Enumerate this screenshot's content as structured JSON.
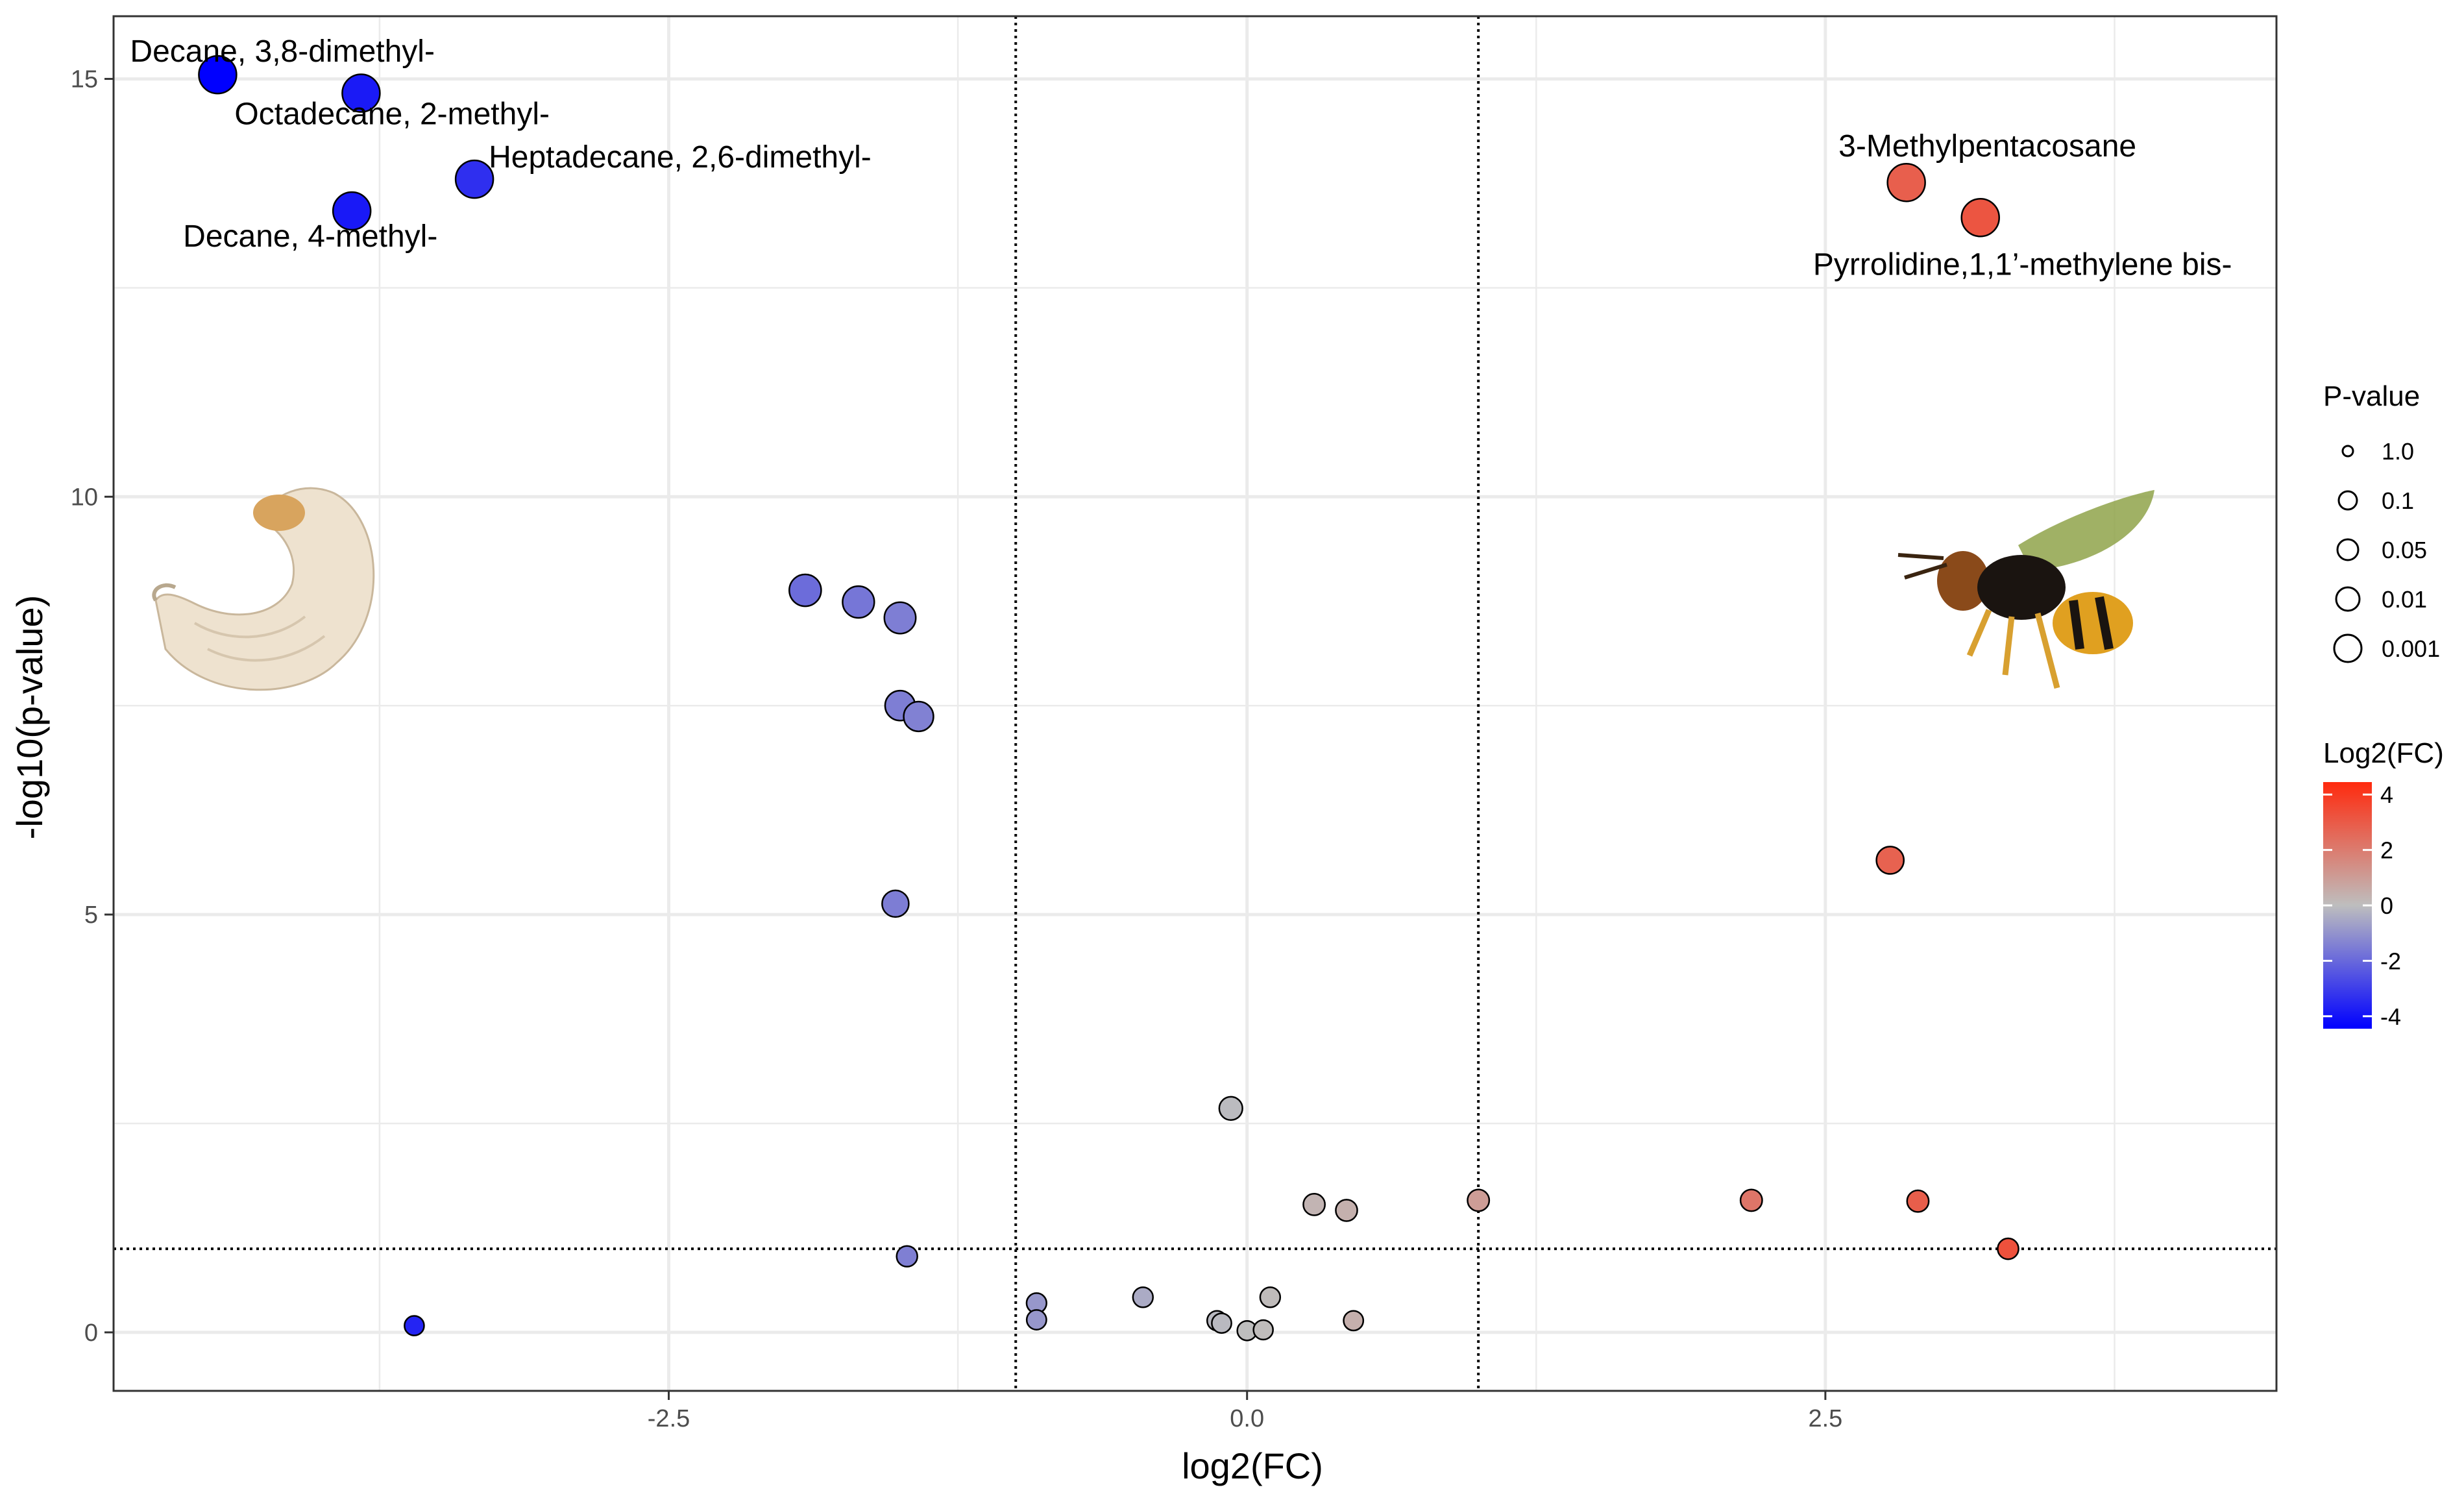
{
  "chart_data": {
    "type": "scatter",
    "title": "",
    "xlabel": "log2(FC)",
    "ylabel": "-log10(p-value)",
    "xlim": [
      -4.9,
      4.45
    ],
    "ylim": [
      -0.7,
      15.75
    ],
    "x_ticks": [
      -2.5,
      0.0,
      2.5
    ],
    "x_tick_labels": [
      "-2.5",
      "0.0",
      "2.5"
    ],
    "y_ticks": [
      0,
      5,
      10,
      15
    ],
    "y_tick_labels": [
      "0",
      "5",
      "10",
      "15"
    ],
    "grid": true,
    "thresholds": {
      "x": [
        -1,
        1
      ],
      "y": 1
    },
    "colors": {
      "low": "#0000ff",
      "mid": "#bebebe",
      "high": "#ff2a0e",
      "grid": "#ebebeb",
      "panel_border": "#333333"
    },
    "points": [
      {
        "x": -4.45,
        "y": 15.05,
        "label": "Decane, 3,8-dimethyl-"
      },
      {
        "x": -3.83,
        "y": 14.83,
        "label": "Octadecane, 2-methyl-"
      },
      {
        "x": -3.34,
        "y": 13.8,
        "label": "Heptadecane, 2,6-dimethyl-"
      },
      {
        "x": -3.87,
        "y": 13.42,
        "label": "Decane, 4-methyl-"
      },
      {
        "x": 2.85,
        "y": 13.76,
        "label": "3-Methylpentacosane"
      },
      {
        "x": 3.17,
        "y": 13.34,
        "label": "Pyrrolidine,1,1’-methylene bis-"
      },
      {
        "x": -1.91,
        "y": 8.88
      },
      {
        "x": -1.68,
        "y": 8.74
      },
      {
        "x": -1.5,
        "y": 8.55
      },
      {
        "x": -1.5,
        "y": 7.5
      },
      {
        "x": -1.42,
        "y": 7.37
      },
      {
        "x": -1.52,
        "y": 5.13
      },
      {
        "x": 2.78,
        "y": 5.65
      },
      {
        "x": -0.07,
        "y": 2.68
      },
      {
        "x": 0.29,
        "y": 1.53
      },
      {
        "x": 0.43,
        "y": 1.46
      },
      {
        "x": 1.0,
        "y": 1.58
      },
      {
        "x": 2.18,
        "y": 1.58
      },
      {
        "x": 2.9,
        "y": 1.57
      },
      {
        "x": 3.29,
        "y": 1.0
      },
      {
        "x": -1.47,
        "y": 0.91
      },
      {
        "x": -3.6,
        "y": 0.08
      },
      {
        "x": -0.91,
        "y": 0.35
      },
      {
        "x": -0.91,
        "y": 0.15
      },
      {
        "x": -0.45,
        "y": 0.42
      },
      {
        "x": -0.13,
        "y": 0.14
      },
      {
        "x": -0.11,
        "y": 0.11
      },
      {
        "x": 0.0,
        "y": 0.02
      },
      {
        "x": 0.07,
        "y": 0.03
      },
      {
        "x": 0.1,
        "y": 0.42
      },
      {
        "x": 0.46,
        "y": 0.14
      }
    ],
    "legend": {
      "size": {
        "title": "P-value",
        "labels": [
          "1.0",
          "0.1",
          "0.05",
          "0.01",
          "0.001"
        ]
      },
      "color": {
        "title": "Log2(FC)",
        "labels": [
          "4",
          "2",
          "0",
          "-2",
          "-4"
        ],
        "values": [
          4,
          2,
          0,
          -2,
          -4
        ],
        "range": [
          -4.45,
          4.45
        ]
      }
    }
  }
}
